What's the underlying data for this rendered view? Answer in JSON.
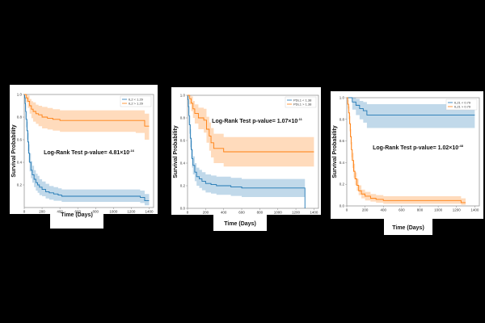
{
  "chart_data": [
    {
      "type": "line",
      "xlabel": "Time (Days)",
      "ylabel": "Survival Probability",
      "xlim": [
        0,
        1450
      ],
      "ylim": [
        0,
        1.0
      ],
      "xticks": [
        0,
        200,
        400,
        600,
        800,
        1000,
        1200,
        1400
      ],
      "yticks": [
        0.2,
        0.4,
        0.6,
        0.8,
        1.0
      ],
      "legend_position": "top-right",
      "annotation": {
        "prefix": "Log-Rank Test p-value= ",
        "mantissa": "4.81",
        "times": "×10",
        "exponent": "-16"
      },
      "series": [
        {
          "name": "IL2 < 1.29",
          "color": "#1f77b4",
          "x": [
            0,
            5,
            10,
            15,
            20,
            30,
            40,
            50,
            60,
            75,
            90,
            110,
            130,
            150,
            170,
            200,
            240,
            280,
            330,
            380,
            420,
            480,
            1300,
            1350,
            1400
          ],
          "y": [
            1.0,
            0.97,
            0.92,
            0.85,
            0.78,
            0.68,
            0.58,
            0.48,
            0.4,
            0.33,
            0.29,
            0.25,
            0.22,
            0.2,
            0.18,
            0.16,
            0.14,
            0.13,
            0.12,
            0.11,
            0.1,
            0.1,
            0.09,
            0.06,
            0.06
          ],
          "ci_lower": [
            1.0,
            0.94,
            0.87,
            0.79,
            0.71,
            0.6,
            0.5,
            0.4,
            0.32,
            0.26,
            0.22,
            0.18,
            0.15,
            0.13,
            0.11,
            0.1,
            0.08,
            0.07,
            0.06,
            0.06,
            0.05,
            0.05,
            0.04,
            0.02,
            0.02
          ],
          "ci_upper": [
            1.0,
            0.99,
            0.96,
            0.91,
            0.85,
            0.76,
            0.66,
            0.56,
            0.48,
            0.41,
            0.37,
            0.33,
            0.3,
            0.28,
            0.25,
            0.23,
            0.21,
            0.19,
            0.18,
            0.17,
            0.16,
            0.16,
            0.15,
            0.12,
            0.12
          ]
        },
        {
          "name": "IL2 > 1.29",
          "color": "#ff7f0e",
          "x": [
            0,
            20,
            40,
            60,
            80,
            100,
            130,
            160,
            200,
            260,
            320,
            400,
            550,
            700,
            1250,
            1350,
            1400
          ],
          "y": [
            1.0,
            0.97,
            0.94,
            0.9,
            0.87,
            0.85,
            0.83,
            0.82,
            0.8,
            0.79,
            0.78,
            0.77,
            0.77,
            0.77,
            0.77,
            0.72,
            0.72
          ],
          "ci_lower": [
            1.0,
            0.93,
            0.88,
            0.83,
            0.79,
            0.76,
            0.74,
            0.72,
            0.7,
            0.69,
            0.68,
            0.67,
            0.67,
            0.67,
            0.66,
            0.6,
            0.6
          ],
          "ci_upper": [
            1.0,
            1.0,
            0.99,
            0.96,
            0.94,
            0.93,
            0.91,
            0.9,
            0.89,
            0.88,
            0.87,
            0.86,
            0.86,
            0.86,
            0.86,
            0.83,
            0.83
          ]
        }
      ]
    },
    {
      "type": "line",
      "xlabel": "Time (Days)",
      "ylabel": "Survival Probability",
      "xlim": [
        0,
        1450
      ],
      "ylim": [
        0,
        1.0
      ],
      "xticks": [
        0,
        200,
        400,
        600,
        800,
        1000,
        1200,
        1400
      ],
      "yticks": [
        0.0,
        0.2,
        0.4,
        0.6,
        0.8,
        1.0
      ],
      "legend_position": "top-right",
      "annotation": {
        "prefix": "Log-Rank Test p-value= ",
        "mantissa": "1.07",
        "times": "×10",
        "exponent": "-11"
      },
      "series": [
        {
          "name": "PDL1 < 1.38",
          "color": "#1f77b4",
          "x": [
            0,
            5,
            10,
            15,
            20,
            30,
            40,
            50,
            60,
            80,
            100,
            130,
            160,
            200,
            260,
            320,
            480,
            600,
            1290,
            1300
          ],
          "y": [
            1.0,
            0.96,
            0.9,
            0.82,
            0.74,
            0.62,
            0.52,
            0.44,
            0.38,
            0.32,
            0.28,
            0.26,
            0.24,
            0.22,
            0.21,
            0.2,
            0.19,
            0.18,
            0.18,
            0.0
          ],
          "ci_lower": [
            1.0,
            0.92,
            0.84,
            0.75,
            0.66,
            0.54,
            0.44,
            0.36,
            0.3,
            0.24,
            0.2,
            0.18,
            0.16,
            0.14,
            0.13,
            0.12,
            0.11,
            0.1,
            0.1,
            0.0
          ],
          "ci_upper": [
            1.0,
            0.99,
            0.95,
            0.89,
            0.82,
            0.7,
            0.6,
            0.52,
            0.46,
            0.4,
            0.36,
            0.34,
            0.32,
            0.3,
            0.29,
            0.28,
            0.27,
            0.26,
            0.26,
            0.26
          ]
        },
        {
          "name": "PDL1 > 1.38",
          "color": "#ff7f0e",
          "x": [
            0,
            20,
            40,
            60,
            80,
            120,
            180,
            210,
            240,
            260,
            290,
            400,
            800,
            1400
          ],
          "y": [
            1.0,
            0.97,
            0.93,
            0.88,
            0.84,
            0.8,
            0.78,
            0.7,
            0.64,
            0.58,
            0.53,
            0.5,
            0.5,
            0.5
          ],
          "ci_lower": [
            1.0,
            0.92,
            0.86,
            0.8,
            0.75,
            0.7,
            0.67,
            0.58,
            0.51,
            0.45,
            0.4,
            0.37,
            0.37,
            0.37
          ],
          "ci_upper": [
            1.0,
            1.0,
            0.99,
            0.95,
            0.92,
            0.89,
            0.88,
            0.81,
            0.76,
            0.71,
            0.66,
            0.63,
            0.63,
            0.63
          ]
        }
      ]
    },
    {
      "type": "line",
      "xlabel": "Time (Days)",
      "ylabel": "Survival Probability",
      "xlim": [
        0,
        1450
      ],
      "ylim": [
        0,
        1.0
      ],
      "xticks": [
        0,
        200,
        400,
        600,
        800,
        1000,
        1200,
        1400
      ],
      "yticks": [
        0.0,
        0.2,
        0.4,
        0.6,
        0.8,
        1.0
      ],
      "legend_position": "top-right",
      "annotation": {
        "prefix": "Log-Rank Test p-value= ",
        "mantissa": "1.02",
        "times": "×10",
        "exponent": "-48"
      },
      "series": [
        {
          "name": "IL21 < 0.79",
          "color": "#1f77b4",
          "x": [
            0,
            60,
            100,
            140,
            180,
            220,
            500,
            1400
          ],
          "y": [
            1.0,
            0.96,
            0.93,
            0.9,
            0.88,
            0.84,
            0.84,
            0.84
          ],
          "ci_lower": [
            1.0,
            0.89,
            0.84,
            0.8,
            0.77,
            0.72,
            0.72,
            0.72
          ],
          "ci_upper": [
            1.0,
            1.0,
            0.99,
            0.97,
            0.96,
            0.94,
            0.94,
            0.94
          ]
        },
        {
          "name": "IL21 > 0.79",
          "color": "#ff7f0e",
          "x": [
            0,
            10,
            20,
            30,
            40,
            50,
            60,
            75,
            90,
            110,
            130,
            160,
            200,
            260,
            320,
            400,
            1200,
            1250,
            1300
          ],
          "y": [
            1.0,
            0.94,
            0.86,
            0.76,
            0.64,
            0.52,
            0.42,
            0.32,
            0.25,
            0.19,
            0.14,
            0.11,
            0.09,
            0.07,
            0.06,
            0.05,
            0.05,
            0.03,
            0.03
          ],
          "ci_lower": [
            1.0,
            0.9,
            0.8,
            0.69,
            0.57,
            0.45,
            0.35,
            0.26,
            0.19,
            0.14,
            0.1,
            0.07,
            0.05,
            0.04,
            0.03,
            0.02,
            0.02,
            0.01,
            0.01
          ],
          "ci_upper": [
            1.0,
            0.98,
            0.92,
            0.83,
            0.71,
            0.59,
            0.49,
            0.39,
            0.31,
            0.25,
            0.19,
            0.15,
            0.13,
            0.11,
            0.1,
            0.09,
            0.09,
            0.07,
            0.07
          ]
        }
      ]
    }
  ]
}
